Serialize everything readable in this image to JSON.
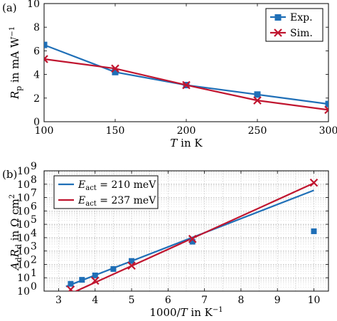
{
  "colors": {
    "exp": "#1f6fb7",
    "sim": "#c0152f",
    "fit1": "#1f6fb7",
    "fit2": "#c0152f",
    "grid": "#b0b0b0"
  },
  "chart_data": [
    {
      "panel": "(a)",
      "type": "line",
      "xlabel_var": "T",
      "xlabel_rest": " in K",
      "ylabel_var": "R",
      "ylabel_sub": "p",
      "ylabel_rest": " in mA W",
      "ylabel_sup": "−1",
      "xlim": [
        100,
        300
      ],
      "ylim": [
        0,
        10
      ],
      "xticks": [
        100,
        150,
        200,
        250,
        300
      ],
      "yticks": [
        0,
        2,
        4,
        6,
        8,
        10
      ],
      "grid": false,
      "legend_position": "top-right",
      "series": [
        {
          "name": "Exp.",
          "marker": "square",
          "color": "#1f6fb7",
          "x": [
            100,
            150,
            200,
            250,
            300
          ],
          "y": [
            6.5,
            4.2,
            3.1,
            2.3,
            1.5
          ]
        },
        {
          "name": "Sim.",
          "marker": "x",
          "color": "#c0152f",
          "x": [
            100,
            150,
            200,
            250,
            300
          ],
          "y": [
            5.3,
            4.5,
            3.1,
            1.8,
            1.0
          ]
        }
      ]
    },
    {
      "panel": "(b)",
      "type": "scatter",
      "xlabel_rest": "1000/",
      "xlabel_var": "T",
      "xlabel_unit": " in K",
      "xlabel_sup": "−1",
      "ylabel_var1": "A",
      "ylabel_sub1": "d",
      "ylabel_var2": "R",
      "ylabel_sub2": "d",
      "ylabel_rest": " in Ω cm",
      "ylabel_sup": "2",
      "xlim": [
        2.6,
        10.4
      ],
      "ylim_log10": [
        0,
        9
      ],
      "y_scale": "log",
      "xticks": [
        3,
        4,
        5,
        6,
        7,
        8,
        9,
        10
      ],
      "yticks_log10": [
        0,
        1,
        2,
        3,
        4,
        5,
        6,
        7,
        8,
        9
      ],
      "grid": true,
      "legend_position": "top-left",
      "legend": [
        {
          "label": "E",
          "sub": "act",
          "value": " = 210 meV",
          "color": "#1f6fb7"
        },
        {
          "label": "E",
          "sub": "act",
          "value": " = 237 meV",
          "color": "#c0152f"
        }
      ],
      "fits": [
        {
          "name": "E_act = 210 meV",
          "color": "#1f6fb7",
          "x": [
            3.2,
            10.0
          ],
          "y": [
            2.2,
            35000000.0
          ]
        },
        {
          "name": "E_act = 237 meV",
          "color": "#c0152f",
          "x": [
            3.3,
            10.0
          ],
          "y": [
            0.6,
            120000000.0
          ]
        }
      ],
      "points_exp": {
        "marker": "square",
        "color": "#1f6fb7",
        "x": [
          3.33,
          3.64,
          4.0,
          4.5,
          5.0,
          6.67,
          10.0
        ],
        "y": [
          3.5,
          7,
          15,
          45,
          180,
          5000,
          30000
        ]
      },
      "points_sim": {
        "marker": "x",
        "color": "#c0152f",
        "x": [
          3.33,
          4.0,
          5.0,
          6.67,
          10.0
        ],
        "y": [
          1.3,
          6,
          80,
          8000,
          130000000.0
        ]
      }
    }
  ]
}
